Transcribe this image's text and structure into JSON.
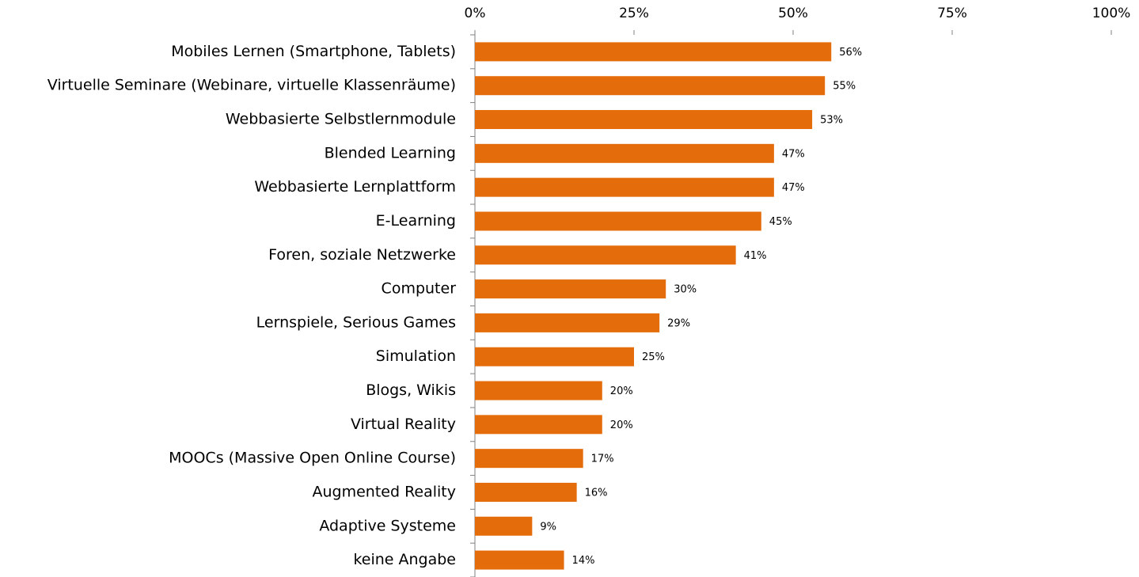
{
  "chart_data": {
    "type": "bar",
    "orientation": "horizontal",
    "categories": [
      "Mobiles Lernen (Smartphone, Tablets)",
      "Virtuelle Seminare (Webinare, virtuelle Klassenräume)",
      "Webbasierte Selbstlernmodule",
      "Blended Learning",
      "Webbasierte Lernplattform",
      "E-Learning",
      "Foren, soziale Netzwerke",
      "Computer",
      "Lernspiele, Serious Games",
      "Simulation",
      "Blogs, Wikis",
      "Virtual Reality",
      "MOOCs (Massive Open Online Course)",
      "Augmented Reality",
      "Adaptive Systeme",
      "keine Angabe"
    ],
    "values": [
      56,
      55,
      53,
      47,
      47,
      45,
      41,
      30,
      29,
      25,
      20,
      20,
      17,
      16,
      9,
      14
    ],
    "value_labels": [
      "56%",
      "55%",
      "53%",
      "47%",
      "47%",
      "45%",
      "41%",
      "30%",
      "29%",
      "25%",
      "20%",
      "20%",
      "17%",
      "16%",
      "9%",
      "14%"
    ],
    "color": "#e46c0a",
    "xlim": [
      0,
      100
    ],
    "xticks": [
      {
        "value": 0,
        "label": "0%"
      },
      {
        "value": 25,
        "label": "25%"
      },
      {
        "value": 50,
        "label": "50%"
      },
      {
        "value": 75,
        "label": "75%"
      },
      {
        "value": 100,
        "label": "100%"
      }
    ],
    "grid": false
  }
}
